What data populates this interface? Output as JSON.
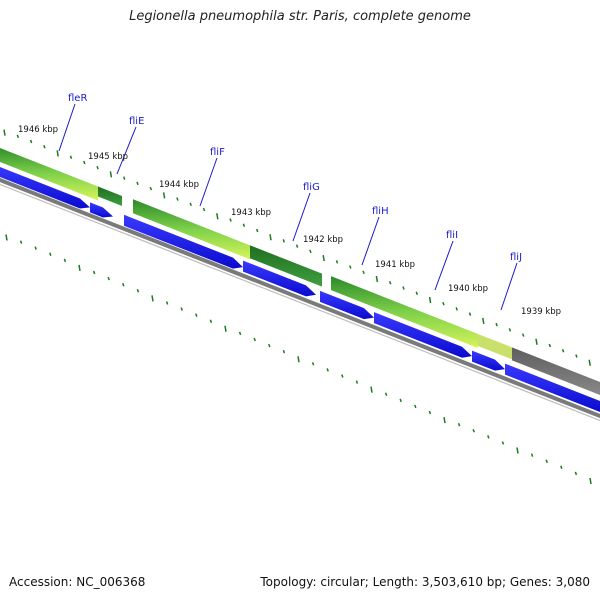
{
  "title": "Legionella pneumophila str. Paris, complete genome",
  "footer": {
    "accession": "Accession: NC_006368",
    "topology": "Topology: circular; Length: 3,503,610 bp; Genes: 3,080"
  },
  "colors": {
    "gene_arrow": "#1515ee",
    "backbone": "#7a7a7a",
    "tick": "#1e7a1e",
    "label": "#1a1acc",
    "gc_high": "#9be33a",
    "gc_mid": "#2f9a2f",
    "gc_low": "#6e6e6e"
  },
  "scale_labels": [
    "1946 kbp",
    "1945 kbp",
    "1944 kbp",
    "1943 kbp",
    "1942 kbp",
    "1941 kbp",
    "1940 kbp",
    "1939 kbp"
  ],
  "genes": [
    "fleR",
    "fliE",
    "fliF",
    "fliG",
    "fliH",
    "fliI",
    "fliJ"
  ]
}
